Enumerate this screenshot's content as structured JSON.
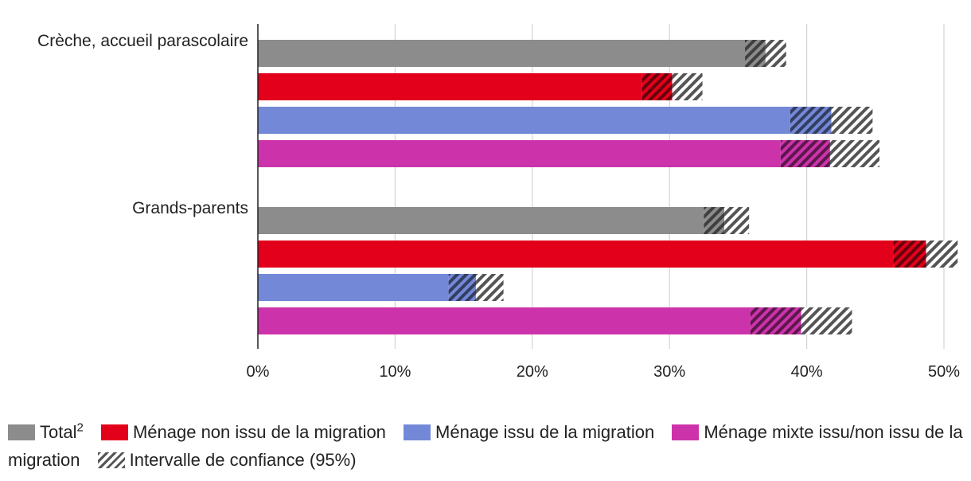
{
  "chart_data": {
    "type": "bar",
    "orientation": "horizontal",
    "categories": [
      "Crèche, accueil parascolaire",
      "Grands-parents"
    ],
    "series": [
      {
        "name": "Total",
        "superscript": "2",
        "color": "#8c8c8c",
        "values": [
          37.0,
          34.0
        ],
        "ci": [
          [
            35.5,
            38.5
          ],
          [
            32.5,
            35.8
          ]
        ]
      },
      {
        "name": "Ménage non issu de la migration",
        "color": "#e2001a",
        "values": [
          30.2,
          48.7
        ],
        "ci": [
          [
            28.0,
            32.4
          ],
          [
            46.3,
            51.0
          ]
        ]
      },
      {
        "name": "Ménage issu de la migration",
        "color": "#7389d8",
        "values": [
          41.8,
          15.9
        ],
        "ci": [
          [
            38.8,
            44.8
          ],
          [
            13.9,
            17.9
          ]
        ]
      },
      {
        "name": "Ménage mixte issu/non issu de la migration",
        "color": "#cc33aa",
        "values": [
          41.7,
          39.6
        ],
        "ci": [
          [
            38.1,
            45.3
          ],
          [
            35.9,
            43.3
          ]
        ]
      }
    ],
    "xlim": [
      0,
      50
    ],
    "xticks": [
      "0%",
      "10%",
      "20%",
      "30%",
      "40%",
      "50%"
    ],
    "grid": true,
    "legend_position": "bottom",
    "ci_label": "Intervalle de confiance (95%)"
  },
  "legend": {
    "total": "Total",
    "total_sup": "2",
    "non_migration": "Ménage non issu de la migration",
    "migration": "Ménage issu de la migration",
    "mixte": "Ménage mixte issu/non issu de la migration",
    "ci": "Intervalle de confiance (95%)"
  }
}
